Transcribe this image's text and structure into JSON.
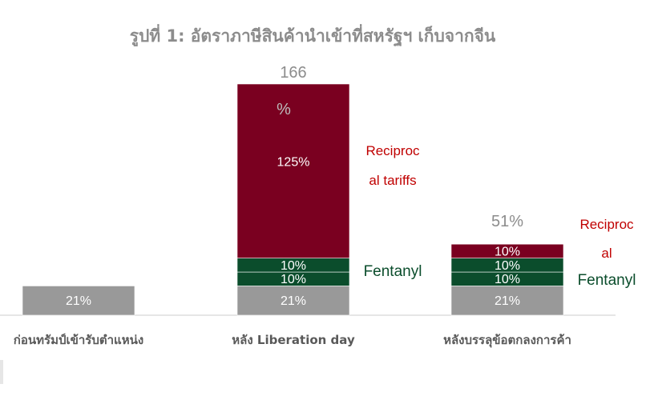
{
  "chart_data": {
    "type": "bar",
    "stacked": true,
    "title": "รูปที่ 1: อัตราภาษีสินค้านำเข้าที่สหรัฐฯ เก็บจากจีน",
    "categories": [
      "ก่อนทรัมป์เข้ารับตำแหน่ง",
      "หลัง Liberation day",
      "หลังบรรลุข้อตกลงการค้า"
    ],
    "series": [
      {
        "name": "",
        "color": "#999999",
        "values": [
          21,
          21,
          21
        ],
        "labels": [
          "21%",
          "21%",
          "21%"
        ]
      },
      {
        "name": "",
        "color": "#0b4d2c",
        "values": [
          0,
          10,
          10
        ],
        "labels": [
          "",
          "10%",
          "10%"
        ]
      },
      {
        "name": "",
        "color": "#0b4d2c",
        "values": [
          0,
          10,
          10
        ],
        "labels": [
          "",
          "10%",
          "10%"
        ]
      },
      {
        "name": "",
        "color": "#7a0020",
        "values": [
          0,
          125,
          10
        ],
        "labels": [
          "",
          "125%",
          "10%"
        ]
      }
    ],
    "totals": [
      "",
      "166",
      "51%"
    ],
    "total_suffix": [
      "",
      "%",
      ""
    ],
    "annotations": [
      {
        "category": 1,
        "lines": [
          "Reciproc",
          "al tariffs"
        ],
        "color": "#c00000",
        "series": 3
      },
      {
        "category": 1,
        "lines": [
          "Fentanyl"
        ],
        "color": "#0b4d2c",
        "series": 1
      },
      {
        "category": 2,
        "lines": [
          "Reciproc",
          "al"
        ],
        "color": "#c00000",
        "series": 3
      },
      {
        "category": 2,
        "lines": [
          "Fentanyl"
        ],
        "color": "#0b4d2c",
        "series": 1
      }
    ],
    "ylim": [
      0,
      166
    ],
    "grid": false,
    "legend": "none"
  }
}
